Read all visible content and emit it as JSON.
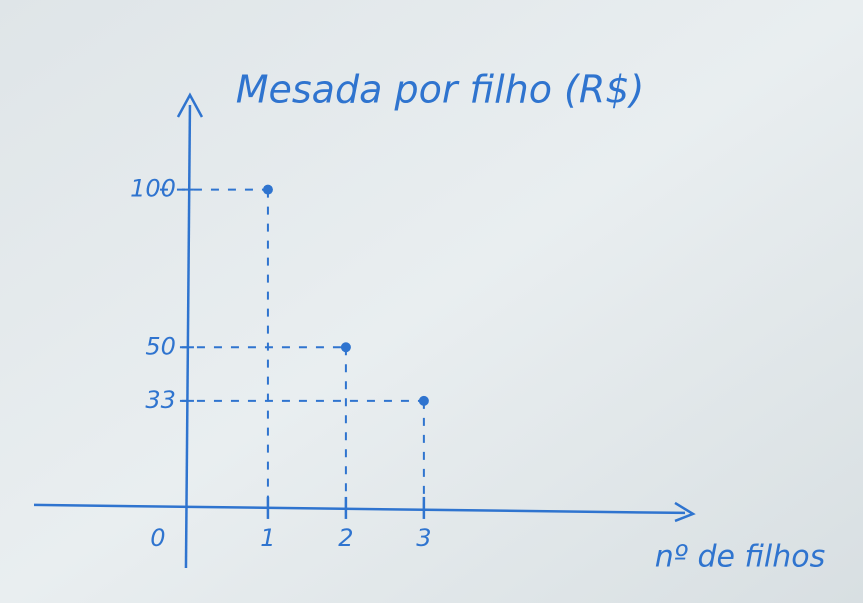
{
  "chart_data": {
    "type": "scatter",
    "title": "Mesada por filho (R$)",
    "x_label": "nº de filhos",
    "x": [
      1,
      2,
      3
    ],
    "values": [
      100,
      50,
      33
    ],
    "color": "#2f74cf",
    "xlim": [
      -2,
      6.4
    ],
    "ylim": [
      -20,
      130
    ],
    "xticks": [
      0,
      1,
      2,
      3
    ],
    "yticks": [
      33,
      50,
      100
    ]
  }
}
